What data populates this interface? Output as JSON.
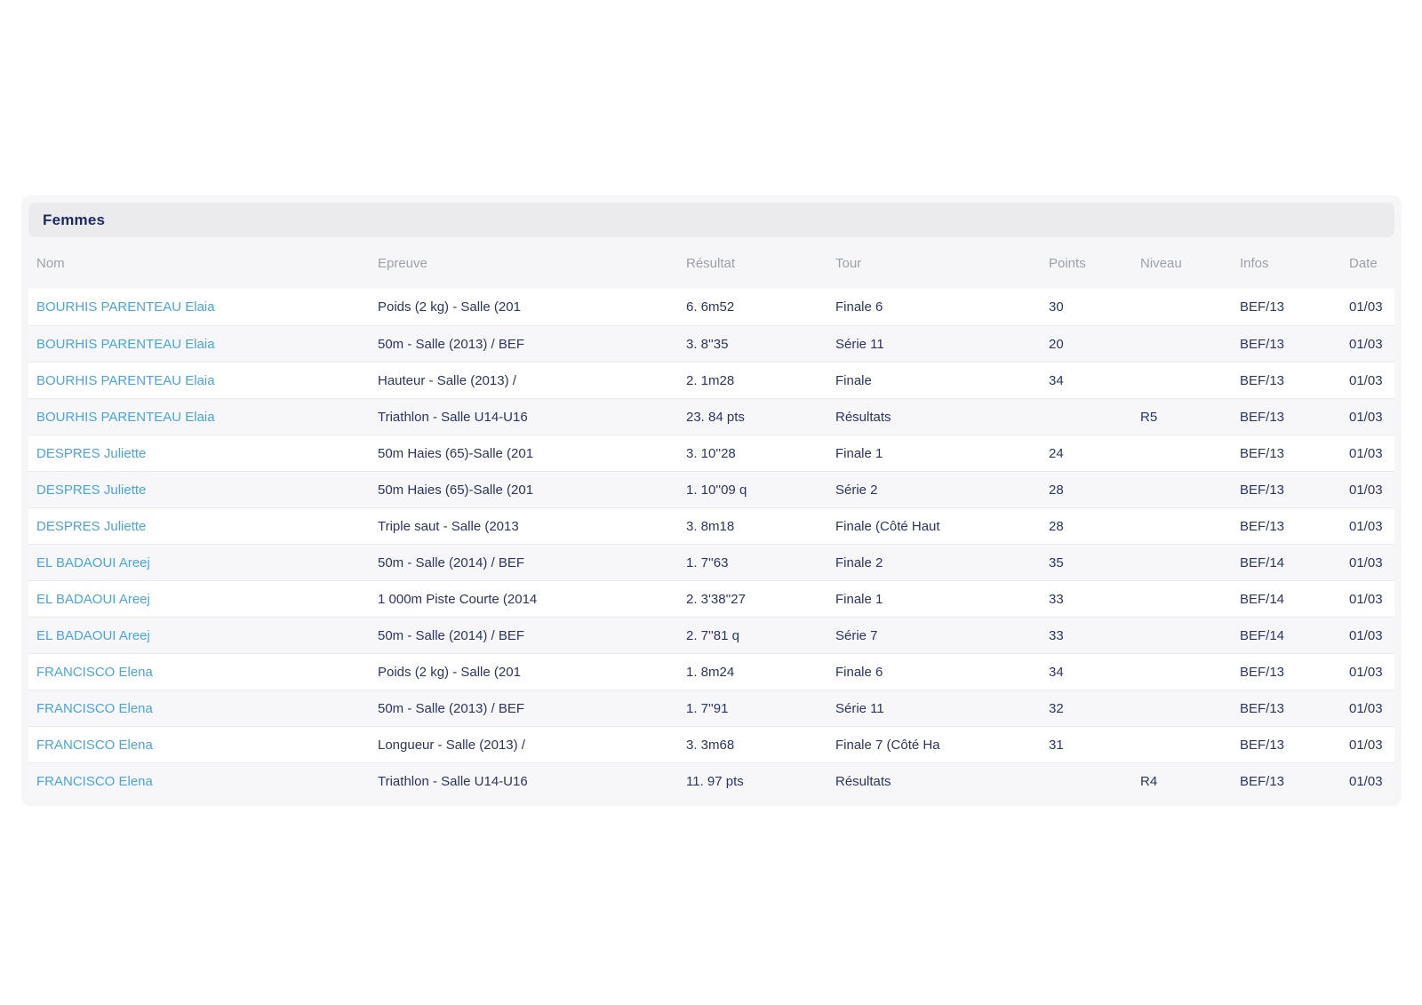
{
  "panel": {
    "section_title": "Femmes",
    "columns": [
      "Nom",
      "Epreuve",
      "Résultat",
      "Tour",
      "Points",
      "Niveau",
      "Infos",
      "Date"
    ],
    "rows": [
      {
        "nom": "BOURHIS PARENTEAU Elaia",
        "epreuve": "Poids (2 kg) - Salle (201",
        "resultat": "6. 6m52",
        "tour": "Finale 6",
        "points": "30",
        "niveau": "",
        "infos": "BEF/13",
        "date": "01/03"
      },
      {
        "nom": "BOURHIS PARENTEAU Elaia",
        "epreuve": "50m - Salle (2013) / BEF",
        "resultat": "3. 8''35",
        "tour": "Série 11",
        "points": "20",
        "niveau": "",
        "infos": "BEF/13",
        "date": "01/03"
      },
      {
        "nom": "BOURHIS PARENTEAU Elaia",
        "epreuve": "Hauteur - Salle (2013) /",
        "resultat": "2. 1m28",
        "tour": "Finale",
        "points": "34",
        "niveau": "",
        "infos": "BEF/13",
        "date": "01/03"
      },
      {
        "nom": "BOURHIS PARENTEAU Elaia",
        "epreuve": "Triathlon - Salle U14-U16",
        "resultat": "23. 84 pts",
        "tour": "Résultats",
        "points": "",
        "niveau": "R5",
        "infos": "BEF/13",
        "date": "01/03"
      },
      {
        "nom": "DESPRES Juliette",
        "epreuve": "50m Haies (65)-Salle (201",
        "resultat": "3. 10''28",
        "tour": "Finale 1",
        "points": "24",
        "niveau": "",
        "infos": "BEF/13",
        "date": "01/03"
      },
      {
        "nom": "DESPRES Juliette",
        "epreuve": "50m Haies (65)-Salle (201",
        "resultat": "1. 10''09 q",
        "tour": "Série 2",
        "points": "28",
        "niveau": "",
        "infos": "BEF/13",
        "date": "01/03"
      },
      {
        "nom": "DESPRES Juliette",
        "epreuve": "Triple saut - Salle (2013",
        "resultat": "3. 8m18",
        "tour": "Finale (Côté Haut",
        "points": "28",
        "niveau": "",
        "infos": "BEF/13",
        "date": "01/03"
      },
      {
        "nom": "EL BADAOUI Areej",
        "epreuve": "50m - Salle (2014) / BEF",
        "resultat": "1. 7''63",
        "tour": "Finale 2",
        "points": "35",
        "niveau": "",
        "infos": "BEF/14",
        "date": "01/03"
      },
      {
        "nom": "EL BADAOUI Areej",
        "epreuve": "1 000m Piste Courte (2014",
        "resultat": "2. 3'38''27",
        "tour": "Finale 1",
        "points": "33",
        "niveau": "",
        "infos": "BEF/14",
        "date": "01/03"
      },
      {
        "nom": "EL BADAOUI Areej",
        "epreuve": "50m - Salle (2014) / BEF",
        "resultat": "2. 7''81 q",
        "tour": "Série 7",
        "points": "33",
        "niveau": "",
        "infos": "BEF/14",
        "date": "01/03"
      },
      {
        "nom": "FRANCISCO Elena",
        "epreuve": "Poids (2 kg) - Salle (201",
        "resultat": "1. 8m24",
        "tour": "Finale 6",
        "points": "34",
        "niveau": "",
        "infos": "BEF/13",
        "date": "01/03"
      },
      {
        "nom": "FRANCISCO Elena",
        "epreuve": "50m - Salle (2013) / BEF",
        "resultat": "1. 7''91",
        "tour": "Série 11",
        "points": "32",
        "niveau": "",
        "infos": "BEF/13",
        "date": "01/03"
      },
      {
        "nom": "FRANCISCO Elena",
        "epreuve": "Longueur - Salle (2013) /",
        "resultat": "3. 3m68",
        "tour": "Finale 7 (Côté Ha",
        "points": "31",
        "niveau": "",
        "infos": "BEF/13",
        "date": "01/03"
      },
      {
        "nom": "FRANCISCO Elena",
        "epreuve": "Triathlon - Salle U14-U16",
        "resultat": "11. 97 pts",
        "tour": "Résultats",
        "points": "",
        "niveau": "R4",
        "infos": "BEF/13",
        "date": "01/03"
      }
    ]
  },
  "colors": {
    "panel_bg": "#f6f6f8",
    "pill_bg": "#ebebee",
    "title_text": "#1e2a64",
    "header_text": "#9ba1ab",
    "cell_text": "#2b3560",
    "link": "#4aa5dd",
    "row_alt_bg": "#f7f7f9",
    "row_separator": "#ebebee"
  }
}
